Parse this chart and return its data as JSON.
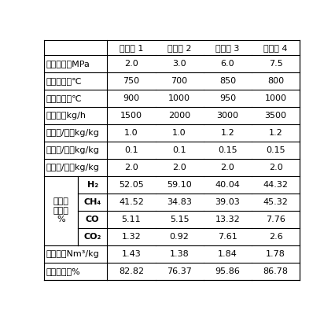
{
  "header": [
    "实施例 1",
    "实施例 2",
    "实施例 3",
    "实施例 4"
  ],
  "row_labels_main": [
    "反应压力，MPa",
    "气化温度，℃",
    "煅烧温度，℃",
    "进煤量，kg/h",
    "氧化馒/煤，kg/kg",
    "催化剂/煤，kg/kg",
    "水蔬气/煤，kg/kg",
    "干煤气\n组成，\n%",
    "产气率，Nm³/kg",
    "煤转化率，%"
  ],
  "sub_labels": [
    "H₂",
    "CH₄",
    "CO",
    "CO₂"
  ],
  "data": [
    [
      "2.0",
      "3.0",
      "6.0",
      "7.5"
    ],
    [
      "750",
      "700",
      "850",
      "800"
    ],
    [
      "900",
      "1000",
      "950",
      "1000"
    ],
    [
      "1500",
      "2000",
      "3000",
      "3500"
    ],
    [
      "1.0",
      "1.0",
      "1.2",
      "1.2"
    ],
    [
      "0.1",
      "0.1",
      "0.15",
      "0.15"
    ],
    [
      "2.0",
      "2.0",
      "2.0",
      "2.0"
    ],
    [
      "52.05",
      "59.10",
      "40.04",
      "44.32"
    ],
    [
      "41.52",
      "34.83",
      "39.03",
      "45.32"
    ],
    [
      "5.11",
      "5.15",
      "13.32",
      "7.76"
    ],
    [
      "1.32",
      "0.92",
      "7.61",
      "2.6"
    ],
    [
      "1.43",
      "1.38",
      "1.84",
      "1.78"
    ],
    [
      "82.82",
      "76.37",
      "95.86",
      "86.78"
    ]
  ],
  "bg_color": "#ffffff",
  "line_color": "#000000",
  "font_size": 8.0,
  "header_font_size": 8.0
}
